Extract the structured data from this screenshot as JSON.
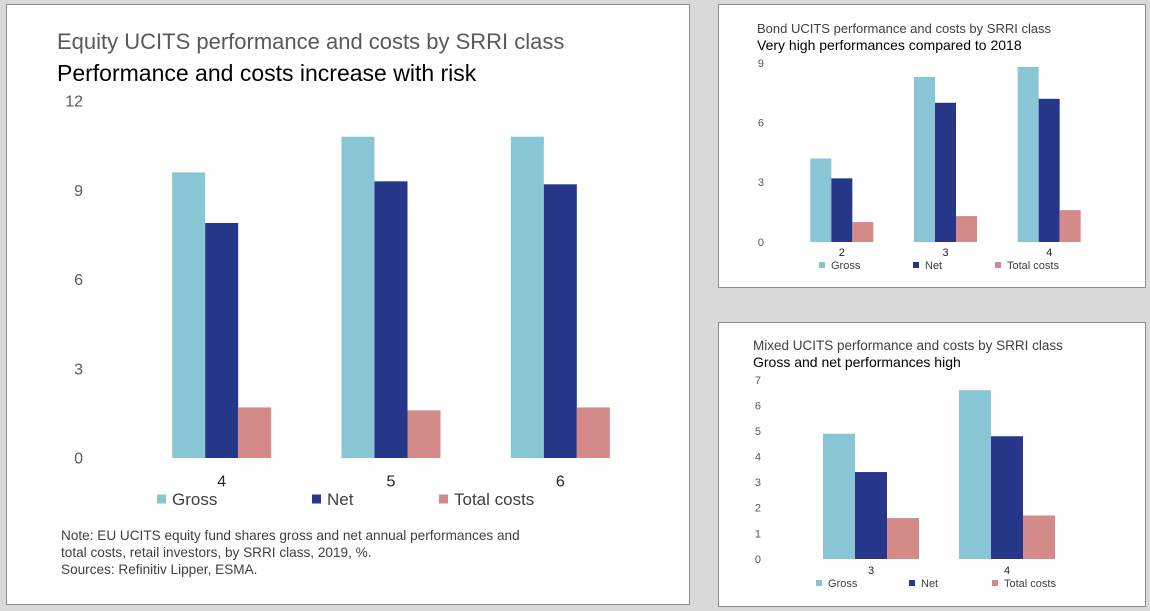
{
  "colors": {
    "gross": "#88c6d6",
    "net": "#26378a",
    "total_costs": "#d48a88"
  },
  "chart_data": [
    {
      "id": "equity",
      "type": "bar",
      "subtitle": "Equity UCITS performance and costs by SRRI class",
      "title": "Performance and costs increase with risk",
      "categories": [
        "4",
        "5",
        "6"
      ],
      "series": [
        {
          "name": "Gross",
          "values": [
            9.6,
            10.8,
            10.8
          ]
        },
        {
          "name": "Net",
          "values": [
            7.9,
            9.3,
            9.2
          ]
        },
        {
          "name": "Total costs",
          "values": [
            1.7,
            1.6,
            1.7
          ]
        }
      ],
      "yticks": [
        "0",
        "3",
        "6",
        "9",
        "12"
      ],
      "ylim": [
        0,
        12
      ],
      "grid": false,
      "legend_position": "bottom"
    },
    {
      "id": "bond",
      "type": "bar",
      "subtitle": "Bond UCITS performance and costs by SRRI class",
      "title": "Very high performances compared to 2018",
      "categories": [
        "2",
        "3",
        "4"
      ],
      "series": [
        {
          "name": "Gross",
          "values": [
            4.2,
            8.3,
            8.8
          ]
        },
        {
          "name": "Net",
          "values": [
            3.2,
            7.0,
            7.2
          ]
        },
        {
          "name": "Total costs",
          "values": [
            1.0,
            1.3,
            1.6
          ]
        }
      ],
      "yticks": [
        "0",
        "3",
        "6",
        "9"
      ],
      "ylim": [
        0,
        9
      ],
      "grid": false,
      "legend_position": "bottom"
    },
    {
      "id": "mixed",
      "type": "bar",
      "subtitle": "Mixed UCITS performance and costs by SRRI class",
      "title": "Gross and net performances high",
      "categories": [
        "3",
        "4"
      ],
      "series": [
        {
          "name": "Gross",
          "values": [
            4.9,
            6.6
          ]
        },
        {
          "name": "Net",
          "values": [
            3.4,
            4.8
          ]
        },
        {
          "name": "Total costs",
          "values": [
            1.6,
            1.7
          ]
        }
      ],
      "yticks": [
        "0",
        "1",
        "2",
        "3",
        "4",
        "5",
        "6",
        "7"
      ],
      "ylim": [
        0,
        7
      ],
      "grid": false,
      "legend_position": "bottom"
    }
  ],
  "note": {
    "line1": "Note: EU UCITS equity fund shares gross and net annual performances and",
    "line2": "total costs, retail investors, by SRRI class, 2019, %.",
    "line3": "Sources: Refinitiv Lipper, ESMA."
  }
}
